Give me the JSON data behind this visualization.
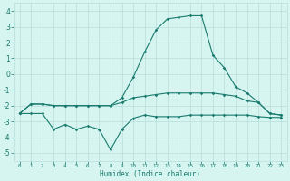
{
  "x": [
    0,
    1,
    2,
    3,
    4,
    5,
    6,
    7,
    8,
    9,
    10,
    11,
    12,
    13,
    14,
    15,
    16,
    17,
    18,
    19,
    20,
    21,
    22,
    23
  ],
  "line1": [
    -2.5,
    -1.9,
    -1.9,
    -2.0,
    -2.0,
    -2.0,
    -2.0,
    -2.0,
    -2.0,
    -1.8,
    -1.5,
    -1.4,
    -1.3,
    -1.2,
    -1.2,
    -1.2,
    -1.2,
    -1.2,
    -1.3,
    -1.4,
    -1.7,
    -1.8,
    -2.5,
    -2.6
  ],
  "line2": [
    -2.5,
    -1.9,
    -1.9,
    -2.0,
    -2.0,
    -2.0,
    -2.0,
    -2.0,
    -2.0,
    -1.5,
    -0.2,
    1.4,
    2.8,
    3.5,
    3.6,
    3.7,
    3.7,
    1.2,
    0.4,
    -0.8,
    -1.2,
    -1.8,
    -2.5,
    -2.6
  ],
  "line3": [
    -2.5,
    -2.5,
    -2.5,
    -3.5,
    -3.2,
    -3.5,
    -3.3,
    -3.5,
    -4.8,
    -3.5,
    -2.8,
    -2.6,
    -2.7,
    -2.7,
    -2.7,
    -2.6,
    -2.6,
    -2.6,
    -2.6,
    -2.6,
    -2.6,
    -2.7,
    -2.75,
    -2.75
  ],
  "line_color": "#1a7a6e",
  "bg_color": "#d6f5f0",
  "grid_color": "#b8deda",
  "xlabel": "Humidex (Indice chaleur)",
  "ylim": [
    -5.5,
    4.5
  ],
  "xlim": [
    -0.5,
    23.5
  ],
  "yticks": [
    -5,
    -4,
    -3,
    -2,
    -1,
    0,
    1,
    2,
    3,
    4
  ],
  "xticks": [
    0,
    1,
    2,
    3,
    4,
    5,
    6,
    7,
    8,
    9,
    10,
    11,
    12,
    13,
    14,
    15,
    16,
    17,
    18,
    19,
    20,
    21,
    22,
    23
  ]
}
